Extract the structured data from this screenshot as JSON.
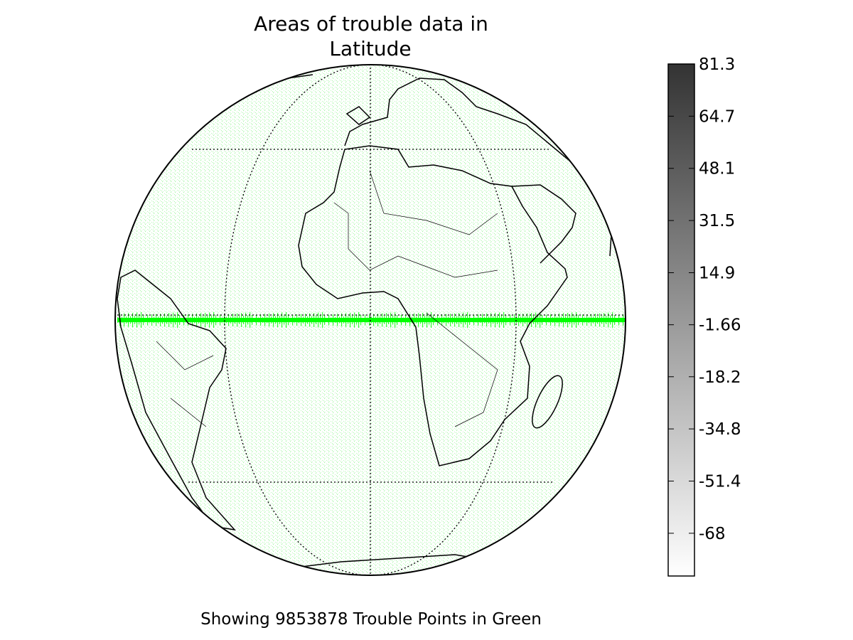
{
  "title_lines": [
    "Areas of trouble data in",
    "Latitude"
  ],
  "caption": "Showing 9853878 Trouble Points in Green",
  "colorbar": {
    "lim": [
      -81.6,
      81.3
    ],
    "ticks": [
      81.3,
      64.7,
      48.1,
      31.5,
      14.9,
      -1.66,
      -18.2,
      -34.8,
      -51.4,
      -68
    ],
    "colors": [
      "#ffffff",
      "#333333"
    ]
  },
  "point_color": "#00ff00"
}
